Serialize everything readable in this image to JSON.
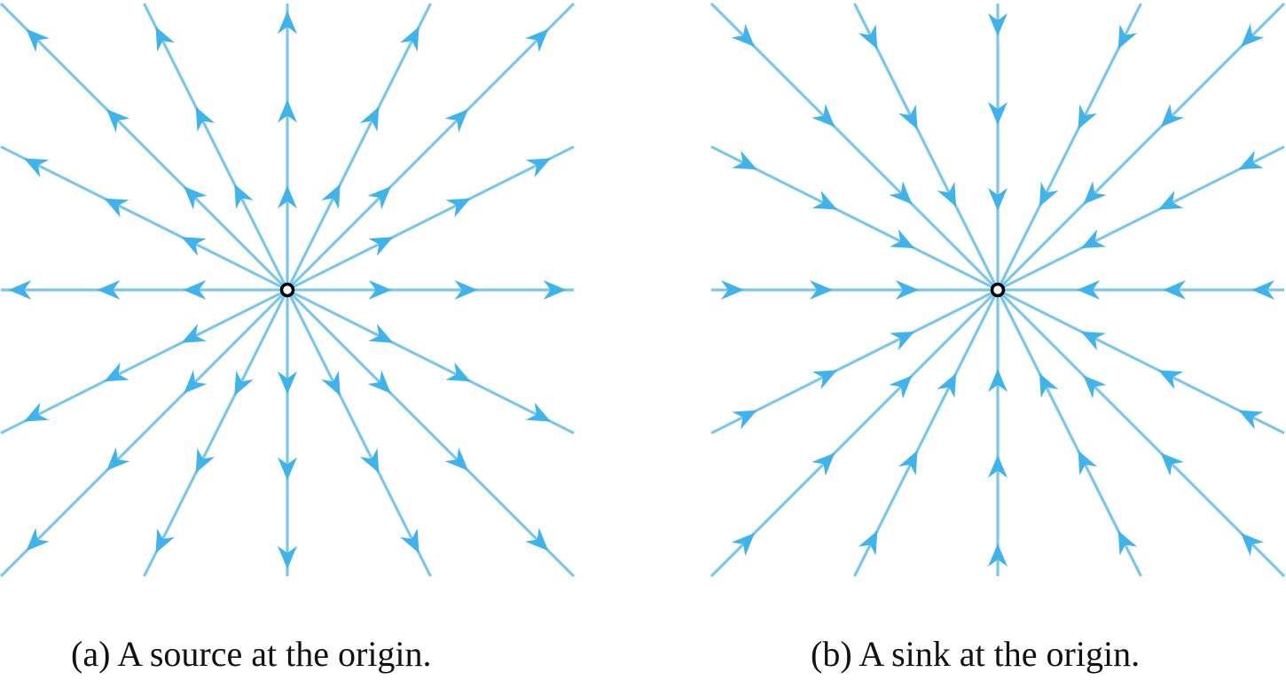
{
  "colors": {
    "line": "#7cc6ec",
    "arrow": "#3fb3ea",
    "origin_stroke": "#000000",
    "origin_fill": "#ffffff"
  },
  "panels": [
    {
      "id": "a",
      "kind": "source",
      "caption": "(a) A source at the origin.",
      "arrow_direction": "outward"
    },
    {
      "id": "b",
      "kind": "sink",
      "caption": "(b) A sink at the origin.",
      "arrow_direction": "inward"
    }
  ],
  "ray_directions": [
    [
      1,
      0
    ],
    [
      2,
      1
    ],
    [
      1,
      1
    ],
    [
      1,
      2
    ],
    [
      0,
      1
    ],
    [
      -1,
      2
    ],
    [
      -1,
      1
    ],
    [
      -2,
      1
    ],
    [
      -1,
      0
    ],
    [
      -2,
      -1
    ],
    [
      -1,
      -1
    ],
    [
      -1,
      -2
    ],
    [
      0,
      -1
    ],
    [
      1,
      -2
    ],
    [
      1,
      -1
    ],
    [
      2,
      -1
    ]
  ],
  "arrows_per_ray": 3
}
